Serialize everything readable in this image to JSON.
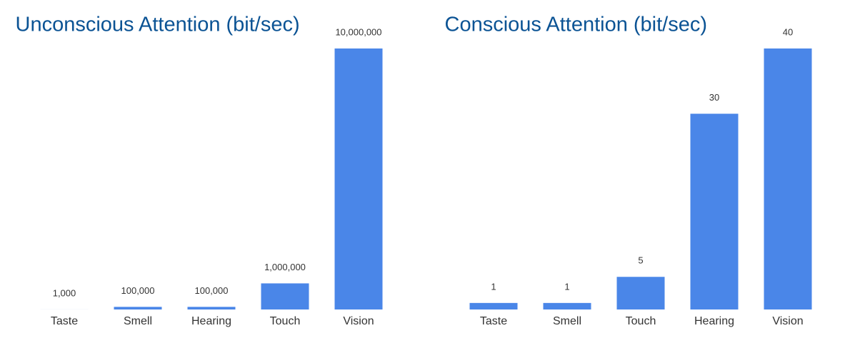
{
  "chart_data": [
    {
      "type": "bar",
      "title": "Unconscious Attention (bit/sec)",
      "categories": [
        "Taste",
        "Smell",
        "Hearing",
        "Touch",
        "Vision"
      ],
      "values": [
        1000,
        100000,
        100000,
        1000000,
        10000000
      ],
      "value_labels": [
        "1,000",
        "100,000",
        "100,000",
        "1,000,000",
        "10,000,000"
      ],
      "color": "#4a86e8",
      "ylim": [
        0,
        10000000
      ]
    },
    {
      "type": "bar",
      "title": "Conscious Attention (bit/sec)",
      "categories": [
        "Taste",
        "Smell",
        "Touch",
        "Hearing",
        "Vision"
      ],
      "values": [
        1,
        1,
        5,
        30,
        40
      ],
      "color": "#4a86e8",
      "ylim": [
        0,
        40
      ]
    }
  ]
}
